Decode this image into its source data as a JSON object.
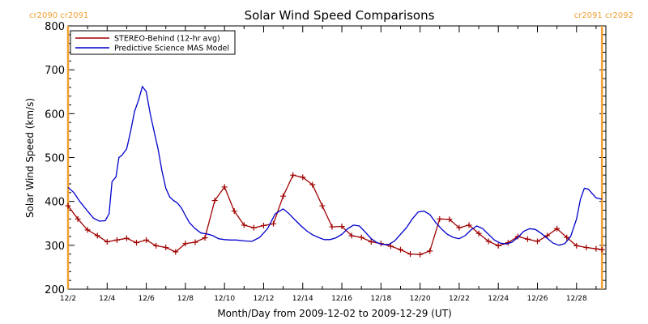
{
  "chart_data": {
    "type": "line",
    "title": "Solar Wind Speed Comparisons",
    "xlabel": "Month/Day from 2009-12-02 to 2009-12-29 (UT)",
    "ylabel": "Solar Wind Speed (km/s)",
    "xlim": [
      0,
      27.5
    ],
    "ylim": [
      200,
      800
    ],
    "x_ticks": [
      {
        "x": 0,
        "label": "12/2"
      },
      {
        "x": 2,
        "label": "12/4"
      },
      {
        "x": 4,
        "label": "12/6"
      },
      {
        "x": 6,
        "label": "12/8"
      },
      {
        "x": 8,
        "label": "12/10"
      },
      {
        "x": 10,
        "label": "12/12"
      },
      {
        "x": 12,
        "label": "12/14"
      },
      {
        "x": 14,
        "label": "12/16"
      },
      {
        "x": 16,
        "label": "12/18"
      },
      {
        "x": 18,
        "label": "12/20"
      },
      {
        "x": 20,
        "label": "12/22"
      },
      {
        "x": 22,
        "label": "12/24"
      },
      {
        "x": 24,
        "label": "12/26"
      },
      {
        "x": 26,
        "label": "12/28"
      }
    ],
    "y_ticks": [
      200,
      300,
      400,
      500,
      600,
      700,
      800
    ],
    "legend_position": "top-left",
    "carrington_markers": [
      {
        "x": 0,
        "label": "cr2090 cr2091",
        "align": "left"
      },
      {
        "x": 27.3,
        "label": "cr2091 cr2092",
        "align": "right"
      }
    ],
    "marker_color": "#f0a030",
    "series": [
      {
        "name": "STEREO-Behind (12-hr avg)",
        "color": "#a00000",
        "marker": "plus",
        "x": [
          0,
          0.5,
          1,
          1.5,
          2,
          2.5,
          3,
          3.5,
          4,
          4.5,
          5,
          5.5,
          6,
          6.5,
          7,
          7.5,
          8,
          8.5,
          9,
          9.5,
          10,
          10.5,
          11,
          11.5,
          12,
          12.5,
          13,
          13.5,
          14,
          14.5,
          15,
          15.5,
          16,
          16.5,
          17,
          17.5,
          18,
          18.5,
          19,
          19.5,
          20,
          20.5,
          21,
          21.5,
          22,
          22.5,
          23,
          23.5,
          24,
          24.5,
          25,
          25.5,
          26,
          26.5,
          27,
          27.3
        ],
        "values": [
          390,
          360,
          335,
          322,
          308,
          312,
          316,
          306,
          312,
          299,
          295,
          285,
          304,
          307,
          317,
          402,
          433,
          378,
          346,
          340,
          345,
          349,
          412,
          460,
          455,
          438,
          390,
          342,
          343,
          322,
          318,
          308,
          304,
          298,
          290,
          280,
          279,
          287,
          360,
          359,
          340,
          346,
          327,
          309,
          299,
          306,
          320,
          314,
          309,
          322,
          338,
          318,
          299,
          295,
          292,
          290
        ]
      },
      {
        "name": "Predictive Science MAS Model",
        "color": "#0000cc",
        "marker": "none",
        "x": [
          0,
          0.3,
          0.6,
          1,
          1.3,
          1.6,
          1.9,
          2.1,
          2.25,
          2.45,
          2.6,
          2.75,
          3,
          3.2,
          3.4,
          3.6,
          3.8,
          4,
          4.2,
          4.4,
          4.6,
          4.8,
          5,
          5.2,
          5.4,
          5.6,
          5.8,
          6,
          6.2,
          6.5,
          6.8,
          7.1,
          7.4,
          7.7,
          8,
          8.3,
          8.6,
          9,
          9.4,
          9.8,
          10.2,
          10.6,
          11,
          11.3,
          11.6,
          11.9,
          12.2,
          12.5,
          12.8,
          13.1,
          13.4,
          13.7,
          14,
          14.3,
          14.6,
          14.9,
          15.2,
          15.5,
          15.8,
          16.1,
          16.4,
          16.7,
          17,
          17.3,
          17.6,
          17.9,
          18.2,
          18.5,
          18.8,
          19.1,
          19.4,
          19.7,
          20,
          20.3,
          20.6,
          20.9,
          21.2,
          21.5,
          21.8,
          22.1,
          22.4,
          22.7,
          23,
          23.3,
          23.6,
          23.9,
          24.2,
          24.5,
          24.8,
          25.1,
          25.4,
          25.7,
          26,
          26.2,
          26.4,
          26.6,
          26.8,
          27,
          27.3
        ],
        "values": [
          432,
          420,
          400,
          378,
          362,
          355,
          356,
          372,
          445,
          456,
          500,
          505,
          520,
          560,
          605,
          630,
          662,
          650,
          600,
          560,
          520,
          470,
          430,
          410,
          402,
          396,
          385,
          368,
          352,
          338,
          328,
          326,
          322,
          315,
          313,
          312,
          312,
          310,
          309,
          318,
          338,
          372,
          383,
          372,
          358,
          345,
          333,
          324,
          318,
          313,
          313,
          317,
          325,
          338,
          346,
          344,
          330,
          315,
          306,
          302,
          302,
          310,
          325,
          340,
          360,
          376,
          378,
          370,
          352,
          337,
          325,
          318,
          315,
          322,
          335,
          344,
          338,
          325,
          312,
          305,
          303,
          307,
          318,
          332,
          338,
          336,
          327,
          316,
          305,
          300,
          304,
          320,
          360,
          405,
          430,
          428,
          418,
          408,
          405
        ]
      }
    ]
  }
}
